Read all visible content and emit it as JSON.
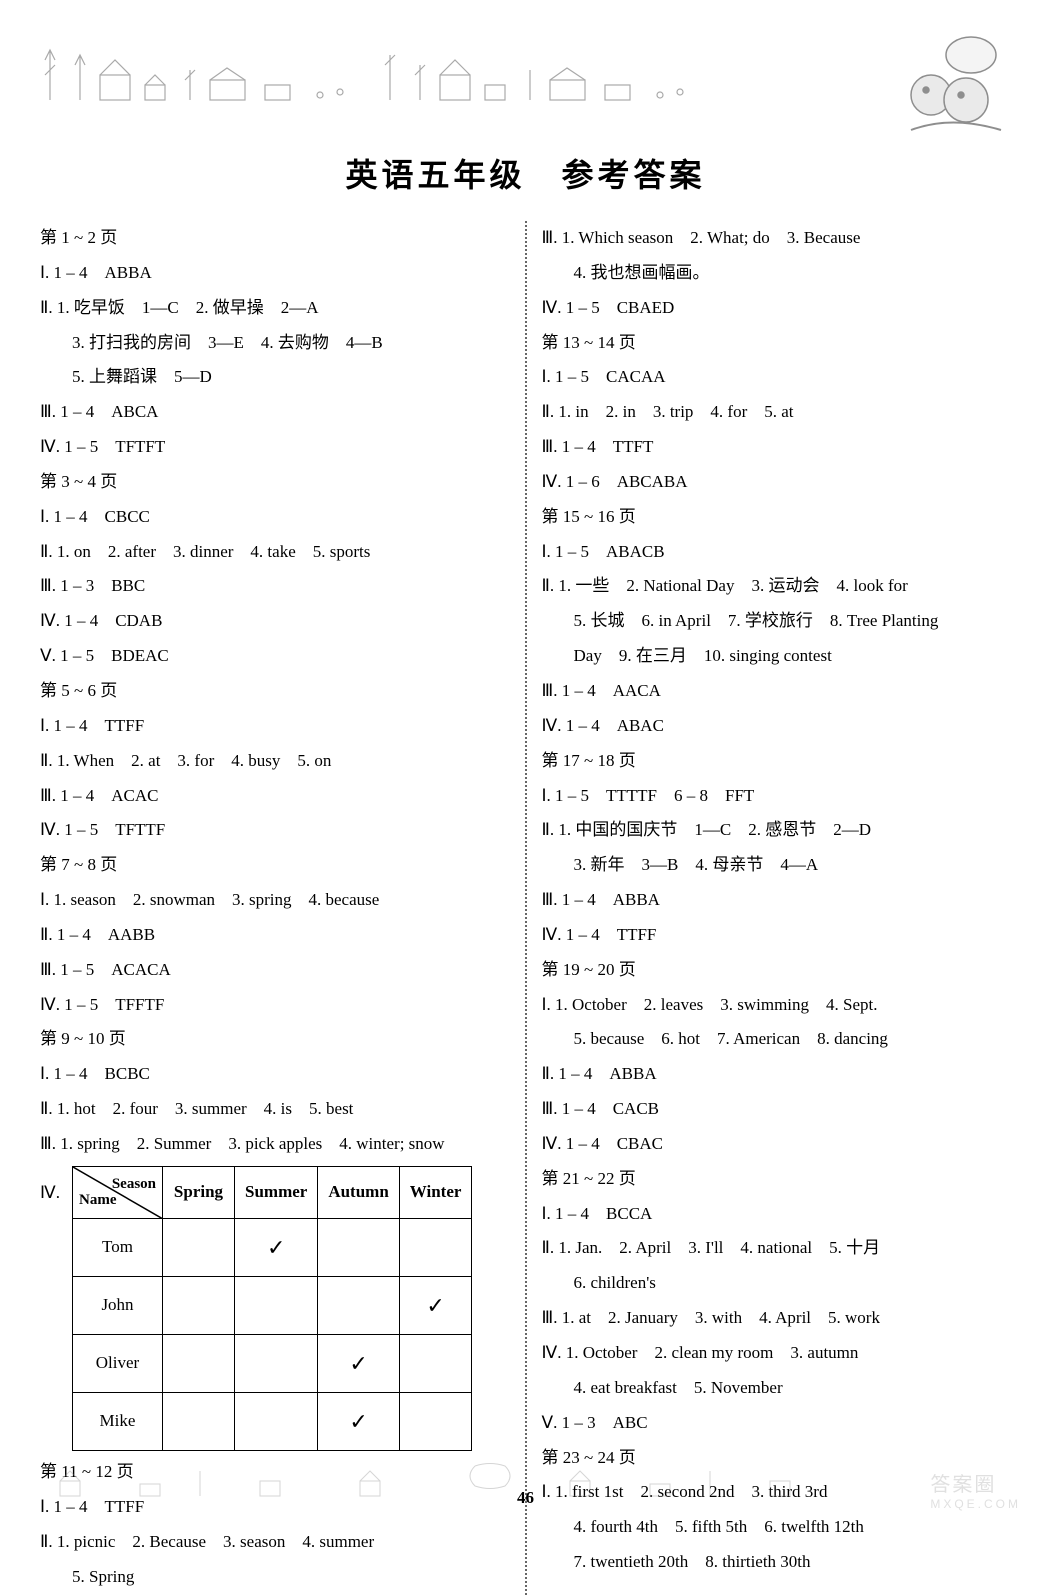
{
  "title": "英语五年级　参考答案",
  "page_number": "46",
  "watermark": {
    "main": "答案圈",
    "sub": "MXQE.COM"
  },
  "table": {
    "diag_top": "Season",
    "diag_bottom": "Name",
    "headers": [
      "Spring",
      "Summer",
      "Autumn",
      "Winter"
    ],
    "rows": [
      {
        "name": "Tom",
        "cells": [
          "",
          "✓",
          "",
          ""
        ]
      },
      {
        "name": "John",
        "cells": [
          "",
          "",
          "",
          "✓"
        ]
      },
      {
        "name": "Oliver",
        "cells": [
          "",
          "",
          "✓",
          ""
        ]
      },
      {
        "name": "Mike",
        "cells": [
          "",
          "",
          "✓",
          ""
        ]
      }
    ]
  },
  "left": [
    {
      "t": "第 1 ~ 2 页"
    },
    {
      "t": "Ⅰ. 1 – 4　ABBA"
    },
    {
      "t": "Ⅱ. 1. 吃早饭　1—C　2. 做早操　2—A"
    },
    {
      "t": "3. 打扫我的房间　3—E　4. 去购物　4—B",
      "i": true
    },
    {
      "t": "5. 上舞蹈课　5—D",
      "i": true
    },
    {
      "t": "Ⅲ. 1 – 4　ABCA"
    },
    {
      "t": "Ⅳ. 1 – 5　TFTFT"
    },
    {
      "t": "第 3 ~ 4 页"
    },
    {
      "t": "Ⅰ. 1 – 4　CBCC"
    },
    {
      "t": "Ⅱ. 1. on　2. after　3. dinner　4. take　5. sports"
    },
    {
      "t": "Ⅲ. 1 – 3　BBC"
    },
    {
      "t": "Ⅳ. 1 – 4　CDAB"
    },
    {
      "t": "Ⅴ. 1 – 5　BDEAC"
    },
    {
      "t": "第 5 ~ 6 页"
    },
    {
      "t": "Ⅰ. 1 – 4　TTFF"
    },
    {
      "t": "Ⅱ. 1. When　2. at　3. for　4. busy　5. on"
    },
    {
      "t": "Ⅲ. 1 – 4　ACAC"
    },
    {
      "t": "Ⅳ. 1 – 5　TFTTF"
    },
    {
      "t": "第 7 ~ 8 页"
    },
    {
      "t": "Ⅰ. 1. season　2. snowman　3. spring　4. because"
    },
    {
      "t": "Ⅱ. 1 – 4　AABB"
    },
    {
      "t": "Ⅲ. 1 – 5　ACACA"
    },
    {
      "t": "Ⅳ. 1 – 5　TFFTF"
    },
    {
      "t": "第 9 ~ 10 页"
    },
    {
      "t": "Ⅰ. 1 – 4　BCBC"
    },
    {
      "t": "Ⅱ. 1. hot　2. four　3. summer　4. is　5. best"
    },
    {
      "t": "Ⅲ. 1. spring　2. Summer　3. pick apples　4. winter; snow"
    },
    {
      "special": "table"
    },
    {
      "t": "第 11 ~ 12 页"
    },
    {
      "t": "Ⅰ. 1 – 4　TTFF"
    },
    {
      "t": "Ⅱ. 1. picnic　2. Because　3. season　4. summer"
    },
    {
      "t": "5. Spring",
      "i": true
    }
  ],
  "right": [
    {
      "t": "Ⅲ. 1. Which season　2. What; do　3. Because"
    },
    {
      "t": "4. 我也想画幅画。",
      "i": true
    },
    {
      "t": "Ⅳ. 1 – 5　CBAED"
    },
    {
      "t": "第 13 ~ 14 页"
    },
    {
      "t": "Ⅰ. 1 – 5　CACAA"
    },
    {
      "t": "Ⅱ. 1. in　2. in　3. trip　4. for　5. at"
    },
    {
      "t": "Ⅲ. 1 – 4　TTFT"
    },
    {
      "t": "Ⅳ. 1 – 6　ABCABA"
    },
    {
      "t": "第 15 ~ 16 页"
    },
    {
      "t": "Ⅰ. 1 – 5　ABACB"
    },
    {
      "t": "Ⅱ. 1. 一些　2. National Day　3. 运动会　4. look for"
    },
    {
      "t": "5. 长城　6. in April　7. 学校旅行　8. Tree Planting",
      "i": true
    },
    {
      "t": "Day　9. 在三月　10. singing contest",
      "i": true
    },
    {
      "t": "Ⅲ. 1 – 4　AACA"
    },
    {
      "t": "Ⅳ. 1 – 4　ABAC"
    },
    {
      "t": "第 17 ~ 18 页"
    },
    {
      "t": "Ⅰ. 1 – 5　TTTTF　6 – 8　FFT"
    },
    {
      "t": "Ⅱ. 1. 中国的国庆节　1—C　2. 感恩节　2—D"
    },
    {
      "t": "3. 新年　3—B　4. 母亲节　4—A",
      "i": true
    },
    {
      "t": "Ⅲ. 1 – 4　ABBA"
    },
    {
      "t": "Ⅳ. 1 – 4　TTFF"
    },
    {
      "t": "第 19 ~ 20 页"
    },
    {
      "t": "Ⅰ. 1. October　2. leaves　3. swimming　4. Sept."
    },
    {
      "t": "5. because　6. hot　7. American　8. dancing",
      "i": true
    },
    {
      "t": "Ⅱ. 1 – 4　ABBA"
    },
    {
      "t": "Ⅲ. 1 – 4　CACB"
    },
    {
      "t": "Ⅳ. 1 – 4　CBAC"
    },
    {
      "t": "第 21 ~ 22 页"
    },
    {
      "t": "Ⅰ. 1 – 4　BCCA"
    },
    {
      "t": "Ⅱ. 1. Jan.　2. April　3. I'll　4. national　5. 十月"
    },
    {
      "t": "6. children's",
      "i": true
    },
    {
      "t": "Ⅲ. 1. at　2. January　3. with　4. April　5. work"
    },
    {
      "t": "Ⅳ. 1. October　2. clean my room　3. autumn"
    },
    {
      "t": "4. eat breakfast　5. November",
      "i": true
    },
    {
      "t": "Ⅴ. 1 – 3　ABC"
    },
    {
      "t": "第 23 ~ 24 页"
    },
    {
      "t": "Ⅰ. 1. first 1st　2. second 2nd　3. third 3rd"
    },
    {
      "t": "4. fourth 4th　5. fifth 5th　6. twelfth 12th",
      "i": true
    },
    {
      "t": "7. twentieth 20th　8. thirtieth 30th",
      "i": true
    }
  ]
}
